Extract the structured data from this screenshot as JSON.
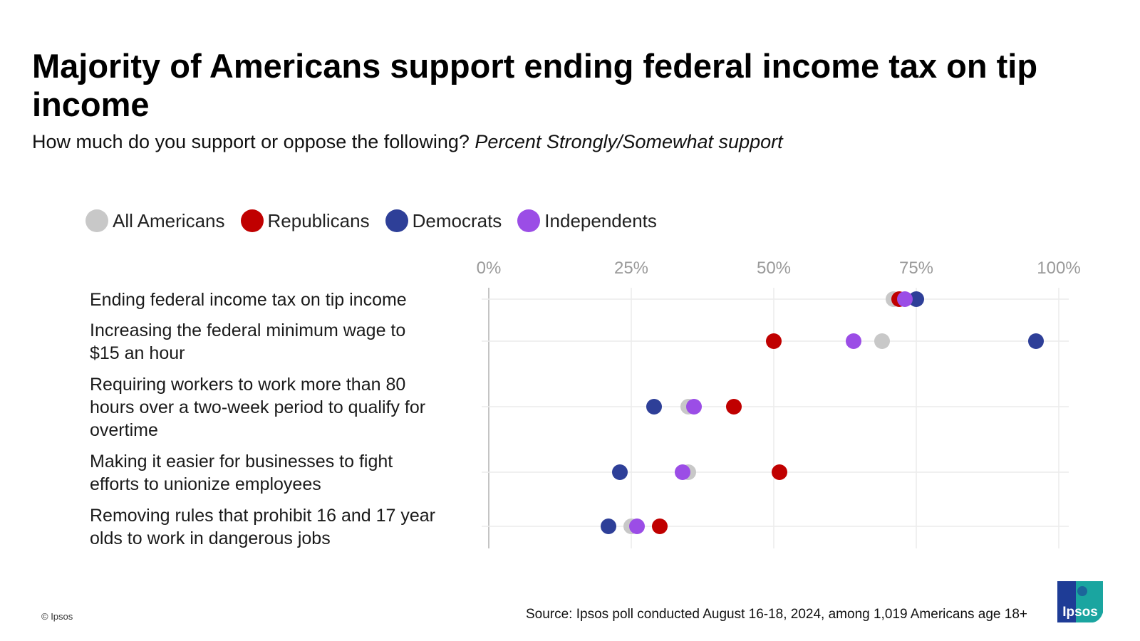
{
  "header": {
    "title": "Majority of Americans support ending federal income tax on tip income",
    "subtitle_plain": "How much do you support or oppose the following?",
    "subtitle_italic": "Percent Strongly/Somewhat support"
  },
  "legend": {
    "items": [
      {
        "label": "All Americans",
        "color": "#c8c8c8"
      },
      {
        "label": "Republicans",
        "color": "#c00000"
      },
      {
        "label": "Democrats",
        "color": "#2e3f98"
      },
      {
        "label": "Independents",
        "color": "#9b4de6"
      }
    ]
  },
  "chart_data": {
    "type": "scatter",
    "title": "Majority of Americans support ending federal income tax on tip income",
    "subtitle": "How much do you support or oppose the following? Percent Strongly/Somewhat support",
    "xlim": [
      0,
      100
    ],
    "x_ticks": [
      0,
      25,
      50,
      75,
      100
    ],
    "x_tick_labels": [
      "0%",
      "25%",
      "50%",
      "75%",
      "100%"
    ],
    "grid": true,
    "legend_position": "top-left",
    "categories": [
      [
        "Ending federal income tax on tip income"
      ],
      [
        "Increasing the federal minimum wage to",
        "$15 an hour"
      ],
      [
        "Requiring workers to work more than 80",
        "hours over a two-week period to qualify for",
        "overtime"
      ],
      [
        "Making it easier for businesses to fight",
        "efforts to unionize employees"
      ],
      [
        "Removing rules that prohibit 16 and 17 year",
        "olds to work in dangerous jobs"
      ]
    ],
    "series": [
      {
        "name": "All Americans",
        "color": "#c8c8c8",
        "values": [
          71,
          69,
          35,
          35,
          25
        ]
      },
      {
        "name": "Republicans",
        "color": "#c00000",
        "values": [
          72,
          50,
          43,
          51,
          30
        ]
      },
      {
        "name": "Democrats",
        "color": "#2e3f98",
        "values": [
          75,
          96,
          29,
          23,
          21
        ]
      },
      {
        "name": "Independents",
        "color": "#9b4de6",
        "values": [
          73,
          64,
          36,
          34,
          26
        ]
      }
    ]
  },
  "footer": {
    "copyright": "© Ipsos",
    "source": "Source: Ipsos poll conducted August 16-18, 2024, among 1,019 Americans age 18+",
    "logo_text": "Ipsos",
    "logo_color_blue": "#1e3c96",
    "logo_color_teal": "#1aa5a0"
  }
}
